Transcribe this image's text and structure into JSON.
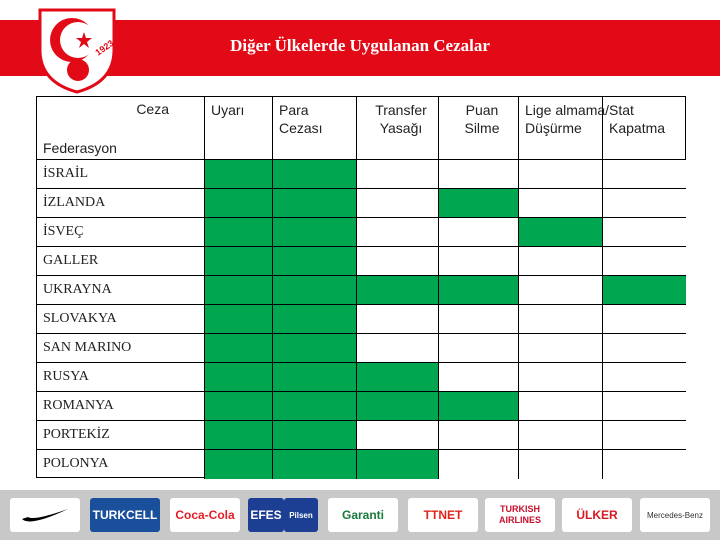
{
  "header": {
    "title": "Diğer Ülkelerde Uygulanan Cezalar",
    "logo_text": "1923"
  },
  "table": {
    "corner_top": "Ceza",
    "corner_bottom": "Federasyon",
    "columns": [
      "Uyarı",
      "Para Cezası",
      "Transfer Yasağı",
      "Puan Silme",
      "Lige almama/ Düşürme",
      "Stat Kapatma"
    ],
    "highlight_color": "#00a650",
    "rows": [
      {
        "federation": "İSRAİL",
        "applied": [
          true,
          true,
          false,
          false,
          false,
          false
        ]
      },
      {
        "federation": "İZLANDA",
        "applied": [
          true,
          true,
          false,
          true,
          false,
          false
        ]
      },
      {
        "federation": "İSVEÇ",
        "applied": [
          true,
          true,
          false,
          false,
          true,
          false
        ]
      },
      {
        "federation": "GALLER",
        "applied": [
          true,
          true,
          false,
          false,
          false,
          false
        ]
      },
      {
        "federation": "UKRAYNA",
        "applied": [
          true,
          true,
          true,
          true,
          false,
          true
        ]
      },
      {
        "federation": "SLOVAKYA",
        "applied": [
          true,
          true,
          false,
          false,
          false,
          false
        ]
      },
      {
        "federation": "SAN MARINO",
        "applied": [
          true,
          true,
          false,
          false,
          false,
          false
        ]
      },
      {
        "federation": "RUSYA",
        "applied": [
          true,
          true,
          true,
          false,
          false,
          false
        ]
      },
      {
        "federation": "ROMANYA",
        "applied": [
          true,
          true,
          true,
          true,
          false,
          false
        ]
      },
      {
        "federation": "PORTEKİZ",
        "applied": [
          true,
          true,
          false,
          false,
          false,
          false
        ]
      },
      {
        "federation": "POLONYA",
        "applied": [
          true,
          true,
          true,
          false,
          false,
          false
        ]
      }
    ]
  },
  "footer": {
    "sponsors": [
      "TURKCELL",
      "Coca-Cola",
      "EFES",
      "Pilsen",
      "Garanti",
      "TTNET",
      "TURKISH AIRLINES",
      "ÜLKER",
      "Mercedes-Benz"
    ]
  }
}
